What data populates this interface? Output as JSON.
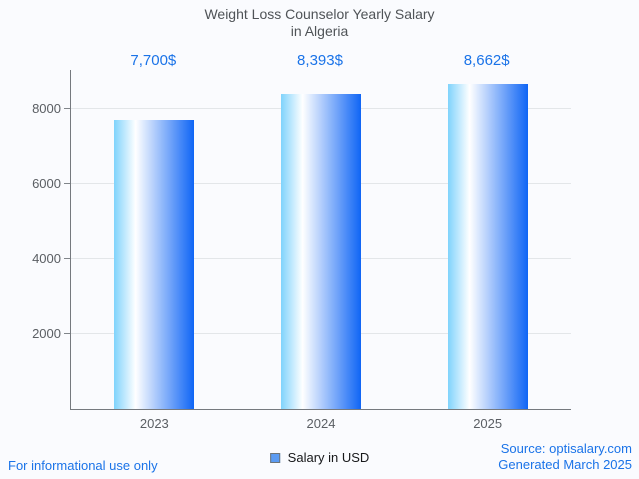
{
  "title": {
    "line1": "Weight Loss Counselor Yearly Salary",
    "line2": "in Algeria"
  },
  "chart_data": {
    "type": "bar",
    "title": "Weight Loss Counselor Yearly Salary in Algeria",
    "categories": [
      "2023",
      "2024",
      "2025"
    ],
    "values": [
      7700,
      8393,
      8662
    ],
    "value_labels": [
      "7,700$",
      "8,393$",
      "8,662$"
    ],
    "series_name": "Salary in USD",
    "xlabel": "",
    "ylabel": "",
    "ylim": [
      0,
      9040
    ],
    "yticks": [
      2000,
      4000,
      6000,
      8000
    ],
    "grid": "horizontal",
    "legend_position": "bottom-center"
  },
  "legend": {
    "label": "Salary in USD",
    "swatch_color": "#5b9bf3"
  },
  "footer": {
    "disclaimer": "For informational use only",
    "source": "Source: optisalary.com",
    "generated": "Generated March 2025"
  },
  "colors": {
    "accent_blue": "#1a73e8",
    "bar_gradient_left": "#7fd3fc",
    "bar_gradient_mid": "#ffffff",
    "bar_gradient_right": "#0f65f5",
    "axis": "#75797e",
    "gridline": "#e3e6e9",
    "tick_text": "#5a5e63",
    "title_text": "#4f5357",
    "background": "#fafbfe"
  }
}
